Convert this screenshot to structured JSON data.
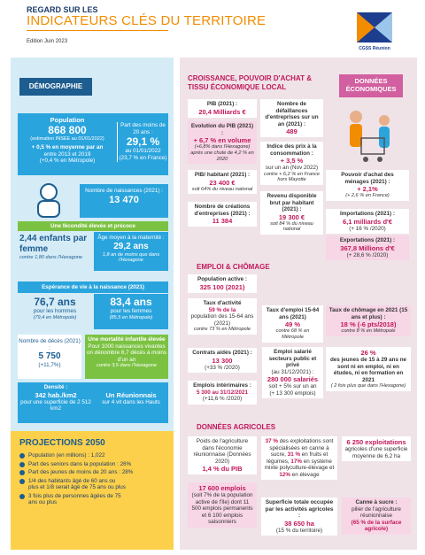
{
  "header": {
    "kicker": "REGARD SUR LES",
    "title": "INDICATEURS CLÉS DU TERRITOIRE",
    "edition": "Edition Juin 2023",
    "logo": "CGSS Réunion"
  },
  "demographie": {
    "tag": "DÉMOGRAPHIE",
    "population": [
      "Population",
      "868 800",
      "(estimation INSEE au 01/01/2022)",
      "+ 0,5 % en moyenne par an",
      "entre 2013 et 2019",
      "(+0,4 % en Métropole)"
    ],
    "jeunes": [
      "Part des moins de 20 ans :",
      "29,1 %",
      "au 01/01/2022",
      "(23,7 % en France)"
    ],
    "naissances": [
      "Nombre de naissances (2021) :",
      "13 470"
    ],
    "fecondite": {
      "title": "Une fécondité élevée et précoce",
      "enfants": [
        "2,44 enfants par femme",
        "contre 1,80 dans l'Hexagone"
      ],
      "maternite": [
        "Âge moyen à la maternité :",
        "29,2 ans",
        "1,8 an de moins que dans l'Hexagone"
      ]
    },
    "esperance": {
      "title": "Espérance de vie à la naissance (2021)",
      "hommes": [
        "76,7 ans",
        "pour les hommes",
        "(79,4 en Métropole)"
      ],
      "femmes": [
        "83,4 ans",
        "pour les femmes",
        "(85,5 en Métropole)"
      ]
    },
    "deces": [
      "Nombre de décès (2021) :",
      "5 750",
      "(+11,7%)"
    ],
    "mortalite": [
      "Une mortalité infantile élevée",
      "Pour 1000 naissances vivantes on dénombre 6,7 décès à moins d'un an",
      "contre 3,5 dans l'Hexagone"
    ],
    "densite": [
      "Densité :",
      "342 hab./km2",
      "pour une superficie de 2 512 km2"
    ],
    "hauts": [
      "Un Réunionnais",
      "sur 4 vit dans les Hauts"
    ]
  },
  "projections": {
    "title": "PROJECTIONS 2050",
    "items": [
      "Population (en millions) : 1,022",
      "Part des seniors dans la population : 26%",
      "Part des jeunes de moins de 20 ans : 28%",
      "1/4 des habitants âgé de 60 ans ou plus et 1/8 serait âgé de 75 ans ou plus",
      "3 fois plus de personnes âgées de 75 ans ou plus"
    ]
  },
  "economie": {
    "title": "CROISSANCE, POUVOIR D'ACHAT & TISSU ÉCONOMIQUE LOCAL",
    "tag": "DONNÉES ÉCONOMIQUES",
    "pib": [
      "PIB (2021) :",
      "20,4 Milliards €"
    ],
    "evolution": [
      "Evolution du PIB (2021) :",
      "+ 6,7 % en volume",
      "(+6,8% dans l'Hexagone)",
      "après une chute de 4,2 % en 2020"
    ],
    "pib_hab": [
      "PIB/ habitant (2021) :",
      "23 400 €",
      "soit 64% du niveau national"
    ],
    "creations": [
      "Nombre de créations d'entreprises (2021) :",
      "11 384"
    ],
    "defaillances": [
      "Nombre de défaillances d'entreprises sur un an (2021) :",
      "489"
    ],
    "prix": [
      "Indice des prix à la consommation :",
      "+ 3,5 %",
      "sur un an (Nov 2022)",
      "contre + 6,2 % en France hors Mayotte"
    ],
    "revenu": [
      "Revenu disponible brut par habitant (2021) :",
      "19 300 €",
      "soit 84 % du niveau national"
    ],
    "pouvoir": [
      "Pouvoir d'achat des ménages (2021) :",
      "+ 2,1%",
      "(+ 2,6 % en France)"
    ],
    "importations": [
      "Importations (2021) :",
      "6,1 milliards d'€",
      "(+ 16 % /2020)"
    ],
    "exportations": [
      "Exportations (2021) :",
      "367,8 Millions d'€",
      "(+ 28,6 % /2020)"
    ]
  },
  "emploi": {
    "title": "EMPLOI & CHÔMAGE",
    "active": [
      "Population active :",
      "325 100 (2021)"
    ],
    "activite": [
      "Taux d'activité",
      "59 % de la",
      "population des 15-64 ans (2021)",
      "contre 73 % en Métropole"
    ],
    "taux_emploi": [
      "Taux d'emploi 15-64 ans (2021)",
      "49 %",
      "contre 68 % en Métropole"
    ],
    "chomage": [
      "Taux de chômage en 2021 (15 ans et plus) :",
      "18 % (-6 pts/2018)",
      "contre 8 % en Métropole"
    ],
    "contrats": [
      "Contrats aidés (2021) :",
      "13 300",
      "(+33 % /2020)"
    ],
    "salarie": [
      "Emploi salarié secteurs public et privé",
      "(au 31/12/2021) :",
      "280 000 salariés",
      "soit + 5% sur un an",
      "(+ 13 300 emplois)"
    ],
    "jeunes": [
      "26 %",
      "des jeunes de 15 à 29 ans ne sont ni en emploi, ni en études, ni en formation en 2021",
      "( 2 fois plus que dans l'Hexagone)"
    ],
    "interim": [
      "Emplois intérimaires :",
      "5 300 au 31/12/2021",
      "(+11,6 % /2020)"
    ]
  },
  "agricole": {
    "title": "DONNÉES AGRICOLES",
    "poids": [
      "Poids de l'agriculture dans l'économie réunionnaise (Données 2020)",
      "1,4 % du PIB"
    ],
    "exploitations_types": [
      "37 %",
      "des exploitations sont spécialisées en canne à sucre,",
      "31 %",
      "en fruits et légumes,",
      "17%",
      "en système mixte polyculture-élevage et",
      "12%",
      "en élevage"
    ],
    "exploitations": [
      "6 250 exploitations",
      "agricoles d'une superficie moyenne de 6,2 ha"
    ],
    "emplois": [
      "17 600 emplois",
      "(soit 7% de la population active de l'île) dont 11 500 emplois permanents et 6 100 emplois saisonniers"
    ],
    "superficie": [
      "Superficie totale occupée par les activités agricoles :",
      "38 650 ha",
      "(15 % du territoire)"
    ],
    "canne": [
      "Canne à sucre :",
      "pilier de l'agriculture réunionnaise",
      "(65 % de la surface agricole)"
    ]
  }
}
